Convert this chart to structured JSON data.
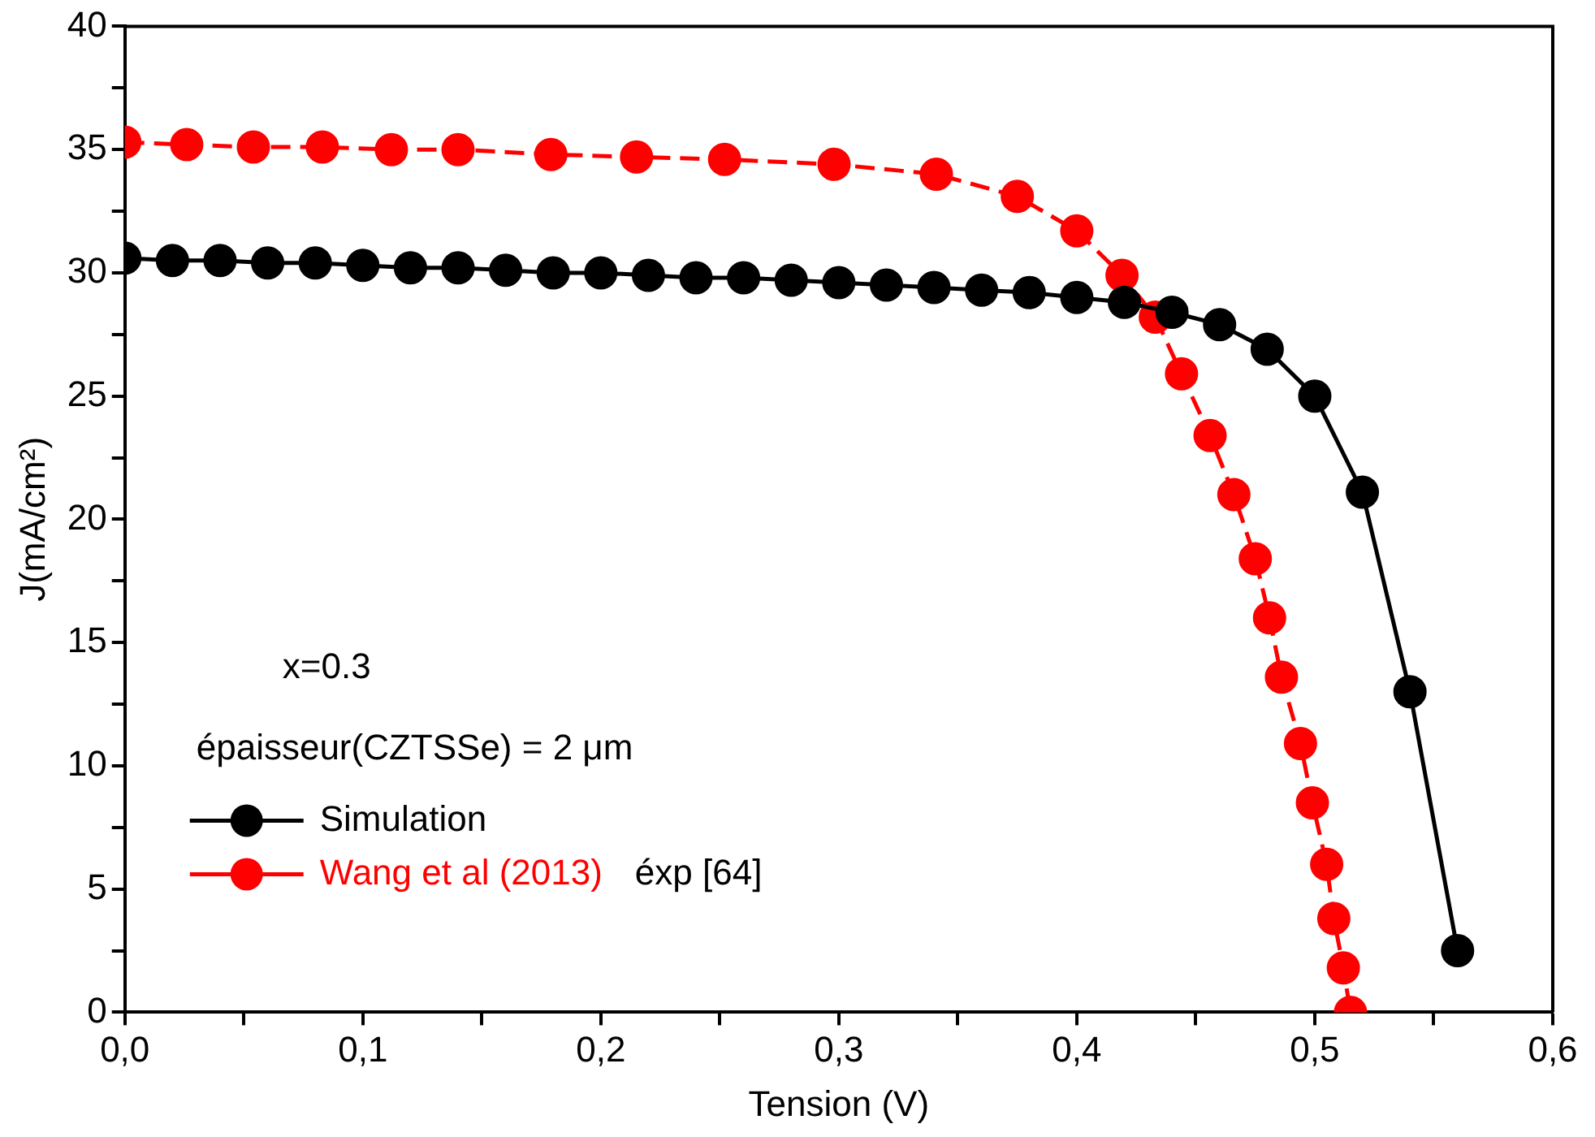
{
  "chart_data": {
    "type": "line",
    "xlabel": "Tension (V)",
    "ylabel": "J(mA/cm²)",
    "xlim": [
      0,
      0.6
    ],
    "ylim": [
      0,
      40
    ],
    "xticks": [
      {
        "value": 0,
        "label": "0,0"
      },
      {
        "value": 0.05,
        "label": null
      },
      {
        "value": 0.1,
        "label": "0,1"
      },
      {
        "value": 0.15,
        "label": null
      },
      {
        "value": 0.2,
        "label": "0,2"
      },
      {
        "value": 0.25,
        "label": null
      },
      {
        "value": 0.3,
        "label": "0,3"
      },
      {
        "value": 0.35,
        "label": null
      },
      {
        "value": 0.4,
        "label": "0,4"
      },
      {
        "value": 0.45,
        "label": null
      },
      {
        "value": 0.5,
        "label": "0,5"
      },
      {
        "value": 0.55,
        "label": null
      },
      {
        "value": 0.6,
        "label": "0,6"
      }
    ],
    "yticks": [
      0,
      {
        "value": 2.5,
        "label": null
      },
      5,
      {
        "value": 7.5,
        "label": null
      },
      10,
      {
        "value": 12.5,
        "label": null
      },
      15,
      {
        "value": 17.5,
        "label": null
      },
      20,
      {
        "value": 22.5,
        "label": null
      },
      25,
      {
        "value": 27.5,
        "label": null
      },
      30,
      {
        "value": 32.5,
        "label": null
      },
      35,
      {
        "value": 37.5,
        "label": null
      },
      40
    ],
    "grid": false,
    "legend": "bottom left",
    "marker": "circle",
    "annotations": [
      "x=0.3",
      "épaisseur(CZTSSe) = 2 μm",
      "éxp [64]"
    ],
    "series": [
      {
        "name": "Simulation",
        "color": "#000000",
        "line_style": "solid",
        "x": [
          0,
          0.02,
          0.04,
          0.06,
          0.08,
          0.1,
          0.12,
          0.14,
          0.16,
          0.18,
          0.2,
          0.22,
          0.24,
          0.26,
          0.28,
          0.3,
          0.32,
          0.34,
          0.36,
          0.38,
          0.4,
          0.42,
          0.44,
          0.46,
          0.48,
          0.5,
          0.52,
          0.54,
          0.56
        ],
        "values": [
          30.6,
          30.5,
          30.5,
          30.4,
          30.4,
          30.3,
          30.2,
          30.2,
          30.1,
          30.0,
          30.0,
          29.9,
          29.8,
          29.8,
          29.7,
          29.6,
          29.5,
          29.4,
          29.3,
          29.2,
          29.0,
          28.8,
          28.4,
          27.9,
          26.9,
          25.0,
          21.1,
          13.0,
          2.5
        ]
      },
      {
        "name": "Wang et al (2013)",
        "color": "#ff0000",
        "line_style": "dashed",
        "x": [
          0,
          0.026,
          0.054,
          0.083,
          0.112,
          0.14,
          0.179,
          0.215,
          0.252,
          0.298,
          0.341,
          0.375,
          0.4,
          0.419,
          0.433,
          0.444,
          0.456,
          0.466,
          0.475,
          0.481,
          0.486,
          0.494,
          0.499,
          0.505,
          0.508,
          0.512,
          0.515
        ],
        "values": [
          35.3,
          35.2,
          35.1,
          35.1,
          35.0,
          35.0,
          34.8,
          34.7,
          34.6,
          34.4,
          34.0,
          33.1,
          31.7,
          29.9,
          28.2,
          25.9,
          23.4,
          21.0,
          18.4,
          16.0,
          13.6,
          10.9,
          8.5,
          6.0,
          3.8,
          1.8,
          0
        ]
      }
    ]
  }
}
